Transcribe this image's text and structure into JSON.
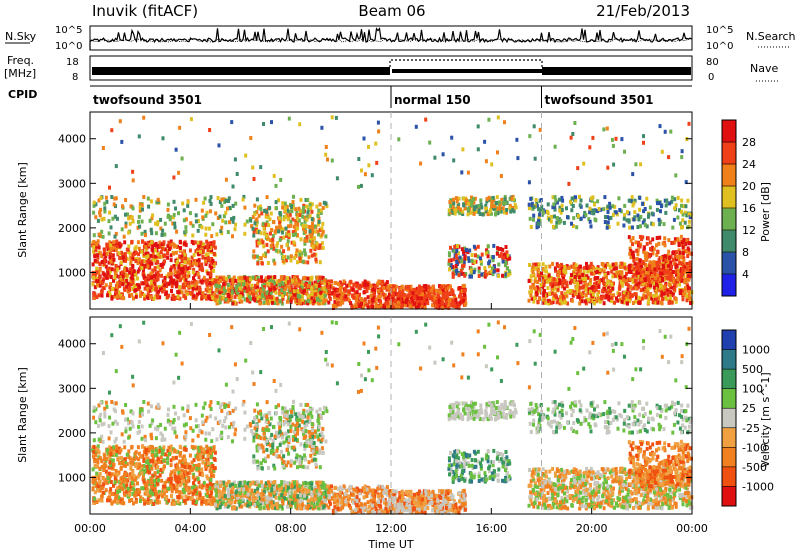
{
  "header": {
    "station": "Inuvik (fitACF)",
    "beam": "Beam 06",
    "date": "21/Feb/2013"
  },
  "strip_labels": {
    "nsky": "N.Sky",
    "nsearch": "N.Search",
    "freq_line1": "Freq.",
    "freq_line2": "[MHz]",
    "nave": "Nave",
    "cpid": "CPID"
  },
  "strip_ticks": {
    "nsky_left": [
      "10^5",
      "10^0"
    ],
    "nsky_right": [
      "10^5",
      "10^0"
    ],
    "freq_left": [
      "18",
      "8"
    ],
    "nave_right": [
      "80",
      "0"
    ]
  },
  "cpid_segments": [
    {
      "label": "twofsound 3501",
      "start_h": 0,
      "end_h": 12
    },
    {
      "label": "normal 150",
      "start_h": 12,
      "end_h": 18
    },
    {
      "label": "twofsound 3501",
      "start_h": 18,
      "end_h": 24
    }
  ],
  "chart_data": [
    {
      "type": "heatmap",
      "name": "power",
      "ylabel": "Slant Range [km]",
      "colorbar_label": "Power [dB]",
      "xlim": [
        0,
        24
      ],
      "ylim": [
        180,
        4600
      ],
      "y_ticks": [
        1000,
        2000,
        3000,
        4000
      ],
      "colorbar_ticks": [
        "4",
        "8",
        "12",
        "16",
        "20",
        "24",
        "28"
      ],
      "colorbar_colors": [
        "#1f22e6",
        "#2a52a8",
        "#3e8a6a",
        "#6db04f",
        "#e0c020",
        "#f0801a",
        "#f04018",
        "#e01010"
      ]
    },
    {
      "type": "heatmap",
      "name": "velocity",
      "ylabel": "Slant Range [km]",
      "colorbar_label": "Velocity [m s^-1]",
      "xlabel": "Time UT",
      "xlim": [
        0,
        24
      ],
      "ylim": [
        180,
        4600
      ],
      "y_ticks": [
        1000,
        2000,
        3000,
        4000
      ],
      "x_ticks": [
        "00:00",
        "04:00",
        "08:00",
        "12:00",
        "16:00",
        "20:00",
        "00:00"
      ],
      "colorbar_ticks": [
        "1000",
        "500",
        "100",
        "25",
        "-25",
        "-100",
        "-500",
        "-1000"
      ],
      "colorbar_colors": [
        "#2040b0",
        "#2f7a88",
        "#3a9a5a",
        "#6cc040",
        "#c8c8c0",
        "#f0a040",
        "#f08020",
        "#f05010",
        "#e01010"
      ]
    }
  ],
  "colors": {
    "gray_scatter": "#c0c0bc",
    "dashed_lines": "#b0b0b0"
  }
}
